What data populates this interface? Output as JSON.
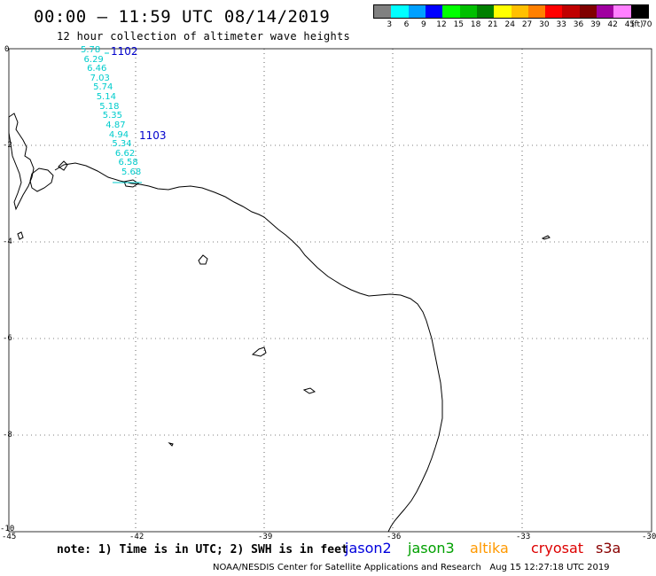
{
  "title": "00:00 – 11:59 UTC 08/14/2019",
  "subtitle": "12 hour collection of altimeter wave heights",
  "legend": {
    "labels": [
      "3",
      "6",
      "9",
      "12",
      "15",
      "18",
      "21",
      "24",
      "27",
      "30",
      "33",
      "36",
      "39",
      "42",
      "45",
      "70"
    ],
    "unit": "(ft)",
    "colors": [
      "#808080",
      "#00ffff",
      "#00a0ff",
      "#0000ff",
      "#00ff00",
      "#00c000",
      "#008000",
      "#ffff00",
      "#ffc000",
      "#ff8000",
      "#ff0000",
      "#c00000",
      "#800000",
      "#a000a0",
      "#ff80ff",
      "#000000"
    ]
  },
  "axes": {
    "x_ticks": [
      "-45",
      "-42",
      "-39",
      "-36",
      "-33",
      "-30"
    ],
    "y_ticks": [
      "0",
      "-2",
      "-4",
      "-6",
      "-8",
      "-10"
    ]
  },
  "pass_labels": [
    {
      "text": "1102",
      "color": "#0000cc"
    },
    {
      "text": "1103",
      "color": "#0000cc"
    }
  ],
  "wave_heights": [
    "5.78",
    "6.29",
    "6.46",
    "7.03",
    "5.74",
    "5.14",
    "5.18",
    "5.35",
    "4.87",
    "4.94",
    "5.34",
    "6.62",
    "6.58",
    "5.68"
  ],
  "wave_color": "#00cccc",
  "note": "note: 1) Time is in UTC; 2) SWH is in feet",
  "satellites": [
    {
      "name": "jason2",
      "color": "#0000dd"
    },
    {
      "name": "jason3",
      "color": "#00a000"
    },
    {
      "name": "altika",
      "color": "#ff9900"
    },
    {
      "name": "cryosat",
      "color": "#dd0000"
    },
    {
      "name": "s3a",
      "color": "#880000"
    }
  ],
  "credit": "NOAA/NESDIS Center for Satellite Applications and Research   Aug 15 12:27:18 UTC 2019"
}
